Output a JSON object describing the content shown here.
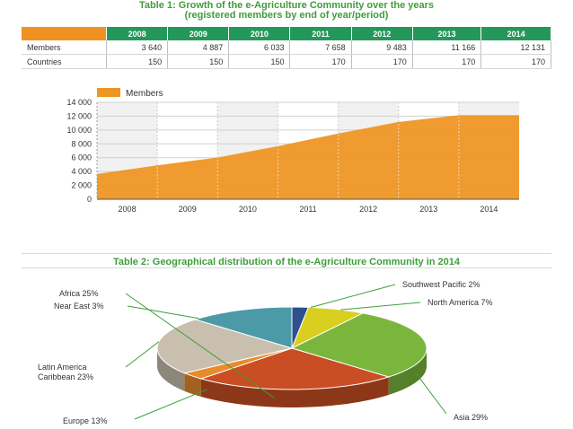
{
  "table1": {
    "title_line1": "Table 1: Growth of the e-Agriculture Community over the years",
    "title_line2": "(registered members by end of year/period)",
    "years": [
      "2008",
      "2009",
      "2010",
      "2011",
      "2012",
      "2013",
      "2014"
    ],
    "rows": [
      {
        "label": "Members",
        "values": [
          "3 640",
          "4 887",
          "6 033",
          "7 658",
          "9 483",
          "11 166",
          "12 131"
        ]
      },
      {
        "label": "Countries",
        "values": [
          "150",
          "150",
          "150",
          "170",
          "170",
          "170",
          "170"
        ]
      }
    ]
  },
  "table2": {
    "title": "Table 2: Geographical distribution of the e-Agriculture Community in 2014"
  },
  "chart_data": [
    {
      "type": "area",
      "categories": [
        "2008",
        "2009",
        "2010",
        "2011",
        "2012",
        "2013",
        "2014"
      ],
      "series": [
        {
          "name": "Members",
          "values": [
            3640,
            4887,
            6033,
            7658,
            9483,
            11166,
            12131
          ]
        }
      ],
      "ylim": [
        0,
        14000
      ],
      "yticks": [
        "0",
        "2 000",
        "4 000",
        "6 000",
        "8 000",
        "10 000",
        "12 000",
        "14 000"
      ],
      "grid": true,
      "legend": "top-left",
      "color": "#ee9624"
    },
    {
      "type": "pie",
      "slices": [
        {
          "label": "Southwest Pacific 2%",
          "value": 2,
          "color": "#2f4f8f"
        },
        {
          "label": "North America 7%",
          "value": 7,
          "color": "#d9cf1e"
        },
        {
          "label": "Asia 29%",
          "value": 29,
          "color": "#7bb63c"
        },
        {
          "label": "Africa 25%",
          "value": 25,
          "color": "#c94e23"
        },
        {
          "label": "Near East 3%",
          "value": 3,
          "color": "#e98a2c"
        },
        {
          "label": "Latin America Caribbean 23%",
          "value": 23,
          "color": "#c9bfae"
        },
        {
          "label": "Europe 13%",
          "value": 13,
          "color": "#4c9aa8"
        }
      ]
    }
  ]
}
